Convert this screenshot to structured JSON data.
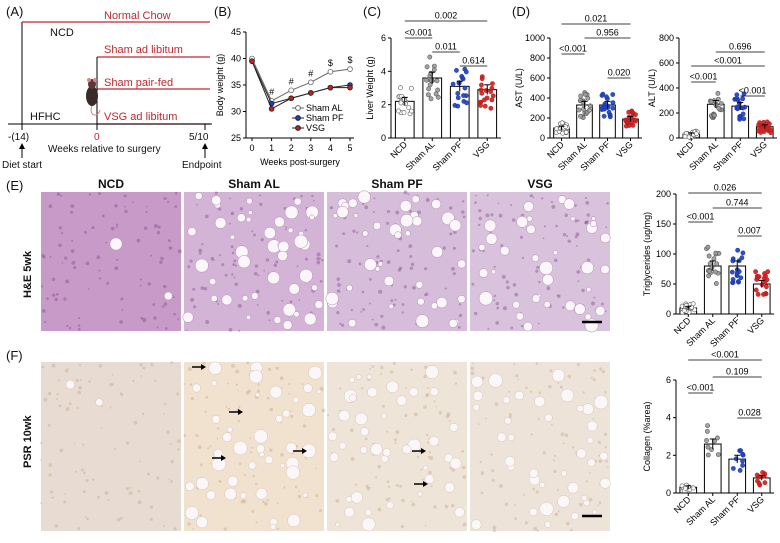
{
  "panels": {
    "A": "(A)",
    "B": "(B)",
    "C": "(C)",
    "D": "(D)",
    "E": "(E)",
    "F": "(F)"
  },
  "timeline": {
    "ncd": "NCD",
    "hfhc": "HFHC",
    "normal_chow": "Normal Chow",
    "sham_al": "Sham ad libitum",
    "sham_pf": "Sham pair-fed",
    "vsg_al": "VSG ad libitum",
    "tick_minus": "-(14)",
    "tick_zero": "0",
    "tick_end": "5/10",
    "xlabel": "Weeks relative to surgery",
    "diet_start": "Diet start",
    "endpoint": "Endpoint",
    "red": "#c0272d"
  },
  "histology": {
    "columns": [
      "NCD",
      "Sham AL",
      "Sham PF",
      "VSG"
    ],
    "row_he": "H&E 5wk",
    "row_psr": "PSR 10wk"
  },
  "chart_data": [
    {
      "id": "B",
      "type": "line",
      "ylabel": "Body weight (g)",
      "xlabel": "Weeks post-surgery",
      "x": [
        0,
        1,
        2,
        3,
        4,
        5
      ],
      "ylim": [
        25,
        45
      ],
      "yticks": [
        25,
        30,
        35,
        40,
        45
      ],
      "series": [
        {
          "name": "Sham AL",
          "values": [
            40,
            32,
            34,
            35.5,
            37.5,
            38
          ]
        },
        {
          "name": "Sham PF",
          "values": [
            39.5,
            31.5,
            32.5,
            33.5,
            34.5,
            35
          ]
        },
        {
          "name": "VSG",
          "values": [
            39.5,
            30.5,
            32.5,
            33.5,
            34.5,
            34.5
          ]
        }
      ],
      "annotations": [
        "#",
        "#",
        "#",
        "$",
        "$"
      ],
      "annotation_x": [
        1,
        2,
        3,
        4,
        5
      ]
    },
    {
      "id": "C",
      "type": "bar",
      "ylabel": "Liver Weight (g)",
      "categories": [
        "NCD",
        "Sham AL",
        "Sham PF",
        "VSG"
      ],
      "values": [
        2.2,
        3.6,
        3.1,
        2.9
      ],
      "ylim": [
        0,
        6
      ],
      "yticks": [
        0,
        2,
        4,
        6
      ],
      "colors": [
        "#9a9a9a",
        "#8e8e8e",
        "#1f3fb4",
        "#c81e1e"
      ],
      "pvalues": [
        "<0.001",
        "0.002",
        "0.011",
        "0.614"
      ]
    },
    {
      "id": "D1",
      "type": "bar",
      "ylabel": "AST (U/L)",
      "categories": [
        "NCD",
        "Sham AL",
        "Sham PF",
        "VSG"
      ],
      "values": [
        100,
        330,
        330,
        190
      ],
      "ylim": [
        0,
        1000
      ],
      "yticks": [
        0,
        200,
        400,
        600,
        800,
        1000
      ],
      "colors": [
        "#9a9a9a",
        "#8e8e8e",
        "#1f3fb4",
        "#c81e1e"
      ],
      "pvalues": [
        "0.021",
        "<0.001",
        "0.956",
        "0.020"
      ]
    },
    {
      "id": "D2",
      "type": "bar",
      "ylabel": "ALT (U/L)",
      "categories": [
        "NCD",
        "Sham AL",
        "Sham PF",
        "VSG"
      ],
      "values": [
        30,
        270,
        255,
        90
      ],
      "ylim": [
        0,
        800
      ],
      "yticks": [
        0,
        200,
        400,
        600,
        800
      ],
      "colors": [
        "#9a9a9a",
        "#8e8e8e",
        "#1f3fb4",
        "#c81e1e"
      ],
      "pvalues": [
        "<0.001",
        "<0.001",
        "0.696",
        "<0.001"
      ]
    },
    {
      "id": "E",
      "type": "bar",
      "ylabel": "Triglycerides (ug/mg)",
      "categories": [
        "NCD",
        "Sham AL",
        "Sham PF",
        "VSG"
      ],
      "values": [
        10,
        80,
        80,
        50
      ],
      "ylim": [
        0,
        200
      ],
      "yticks": [
        0,
        50,
        100,
        150,
        200
      ],
      "colors": [
        "#9a9a9a",
        "#8e8e8e",
        "#1f3fb4",
        "#c81e1e"
      ],
      "pvalues": [
        "0.026",
        "<0.001",
        "0.744",
        "0.007"
      ]
    },
    {
      "id": "F",
      "type": "bar",
      "ylabel": "Collagen (%area)",
      "categories": [
        "NCD",
        "Sham AL",
        "Sham PF",
        "VSG"
      ],
      "values": [
        0.3,
        2.6,
        1.8,
        0.8
      ],
      "ylim": [
        0,
        6
      ],
      "yticks": [
        0,
        2,
        4,
        6
      ],
      "colors": [
        "#9a9a9a",
        "#8e8e8e",
        "#1f3fb4",
        "#c81e1e"
      ],
      "pvalues": [
        "<0.001",
        "<0.001",
        "0.109",
        "0.028"
      ]
    }
  ]
}
